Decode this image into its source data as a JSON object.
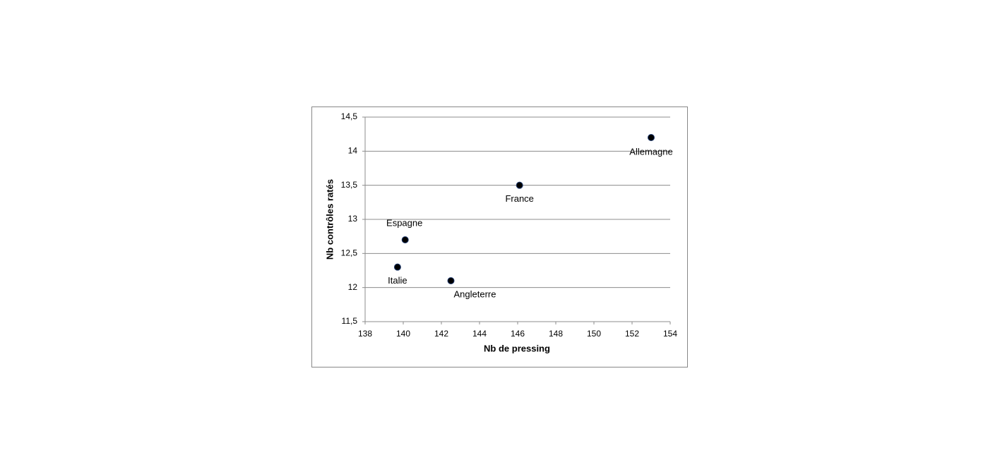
{
  "chart_data": {
    "type": "scatter",
    "x_label": "Nb de pressing",
    "y_label": "Nb contrôles ratés",
    "point_labels": [
      "Allemagne",
      "France",
      "Espagne",
      "Italie",
      "Angleterre"
    ],
    "x": [
      153,
      146.1,
      140.1,
      139.7,
      142.5
    ],
    "series": [
      {
        "color": "#000000",
        "values": [
          14.2,
          13.5,
          12.7,
          12.3,
          12.1
        ]
      }
    ],
    "xlim": [
      138,
      154
    ],
    "xticks": [
      138,
      140,
      142,
      144,
      146,
      148,
      150,
      152,
      154
    ],
    "ylim": [
      11.5,
      14.5
    ],
    "yticks": [
      {
        "value": 11.5,
        "label": "11,5"
      },
      12,
      {
        "value": 12.5,
        "label": "12,5"
      },
      13,
      {
        "value": 13.5,
        "label": "13,5"
      },
      14,
      {
        "value": 14.5,
        "label": "14,5"
      }
    ],
    "grid": true
  }
}
